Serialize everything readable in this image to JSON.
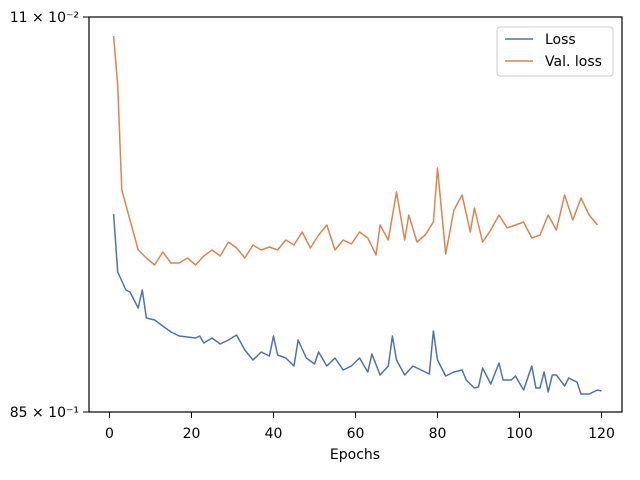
{
  "chart_data": {
    "type": "line",
    "xlabel": "Epochs",
    "xlim": [
      -5,
      125
    ],
    "xticks": [
      0,
      20,
      40,
      60,
      80,
      100,
      120
    ],
    "ylim": [
      8.5,
      0.11
    ],
    "yscale": "log",
    "yticks": [
      {
        "value": 0.11,
        "label": "11 × 10⁻²"
      },
      {
        "value": 8.5,
        "label": "85 × 10⁻¹"
      }
    ],
    "legend": "upper right",
    "series": [
      {
        "name": "Loss",
        "color": "#4c72b0",
        "x": [
          1,
          2,
          4,
          5,
          7,
          8,
          9,
          11,
          13,
          15,
          17,
          19,
          21,
          22,
          23,
          25,
          27,
          29,
          31,
          33,
          35,
          37,
          39,
          40,
          41,
          43,
          45,
          46,
          48,
          50,
          51,
          53,
          55,
          57,
          59,
          61,
          63,
          64,
          66,
          68,
          69,
          70,
          72,
          74,
          76,
          78,
          79,
          80,
          82,
          84,
          86,
          87,
          89,
          90,
          91,
          93,
          95,
          96,
          98,
          99,
          101,
          103,
          104,
          105,
          106,
          107,
          108,
          109,
          111,
          112,
          114,
          115,
          117,
          119,
          120
        ],
        "values": [
          0.9617,
          1.82,
          2.22,
          2.269,
          2.706,
          2.22,
          3.02,
          3.088,
          3.299,
          3.524,
          3.683,
          3.724,
          3.764,
          3.683,
          3.977,
          3.764,
          4.021,
          3.848,
          3.642,
          4.296,
          4.795,
          4.391,
          4.589,
          3.683,
          4.539,
          4.69,
          5.123,
          3.848,
          4.69,
          5.011,
          4.391,
          5.123,
          4.69,
          5.353,
          5.123,
          4.69,
          5.472,
          4.489,
          5.655,
          5.123,
          3.683,
          4.795,
          5.655,
          5.123,
          5.353,
          5.594,
          3.485,
          4.795,
          5.718,
          5.472,
          5.353,
          5.975,
          6.526,
          6.455,
          5.237,
          6.245,
          4.956,
          5.975,
          5.975,
          5.718,
          6.671,
          5.123,
          6.526,
          6.526,
          5.472,
          6.819,
          5.655,
          5.655,
          6.384,
          5.845,
          6.109,
          6.971,
          6.971,
          6.671,
          6.745
        ]
      },
      {
        "name": "Val. loss",
        "color": "#dd8452",
        "x": [
          1,
          2,
          3,
          5,
          7,
          9,
          11,
          13,
          15,
          17,
          19,
          21,
          23,
          25,
          27,
          29,
          31,
          33,
          35,
          37,
          39,
          41,
          43,
          45,
          47,
          49,
          51,
          53,
          55,
          57,
          59,
          61,
          63,
          65,
          66,
          68,
          70,
          72,
          73,
          75,
          77,
          79,
          80,
          82,
          84,
          86,
          88,
          89,
          91,
          93,
          95,
          97,
          99,
          101,
          103,
          105,
          107,
          109,
          111,
          113,
          115,
          117,
          119
        ],
        "values": [
          0.1356,
          0.2325,
          0.7385,
          1.027,
          1.429,
          1.561,
          1.686,
          1.461,
          1.649,
          1.649,
          1.561,
          1.686,
          1.527,
          1.429,
          1.527,
          1.309,
          1.398,
          1.561,
          1.353,
          1.429,
          1.383,
          1.429,
          1.28,
          1.353,
          1.172,
          1.398,
          1.212,
          1.086,
          1.429,
          1.28,
          1.338,
          1.172,
          1.252,
          1.51,
          1.086,
          1.28,
          0.7549,
          1.28,
          0.9723,
          1.309,
          1.212,
          1.05,
          0.5796,
          1.494,
          0.9203,
          0.7802,
          1.172,
          0.9001,
          1.309,
          1.147,
          0.9723,
          1.122,
          1.086,
          1.05,
          1.252,
          1.212,
          0.9723,
          1.147,
          0.7802,
          1.027,
          0.8062,
          0.9723,
          1.086
        ]
      }
    ]
  }
}
